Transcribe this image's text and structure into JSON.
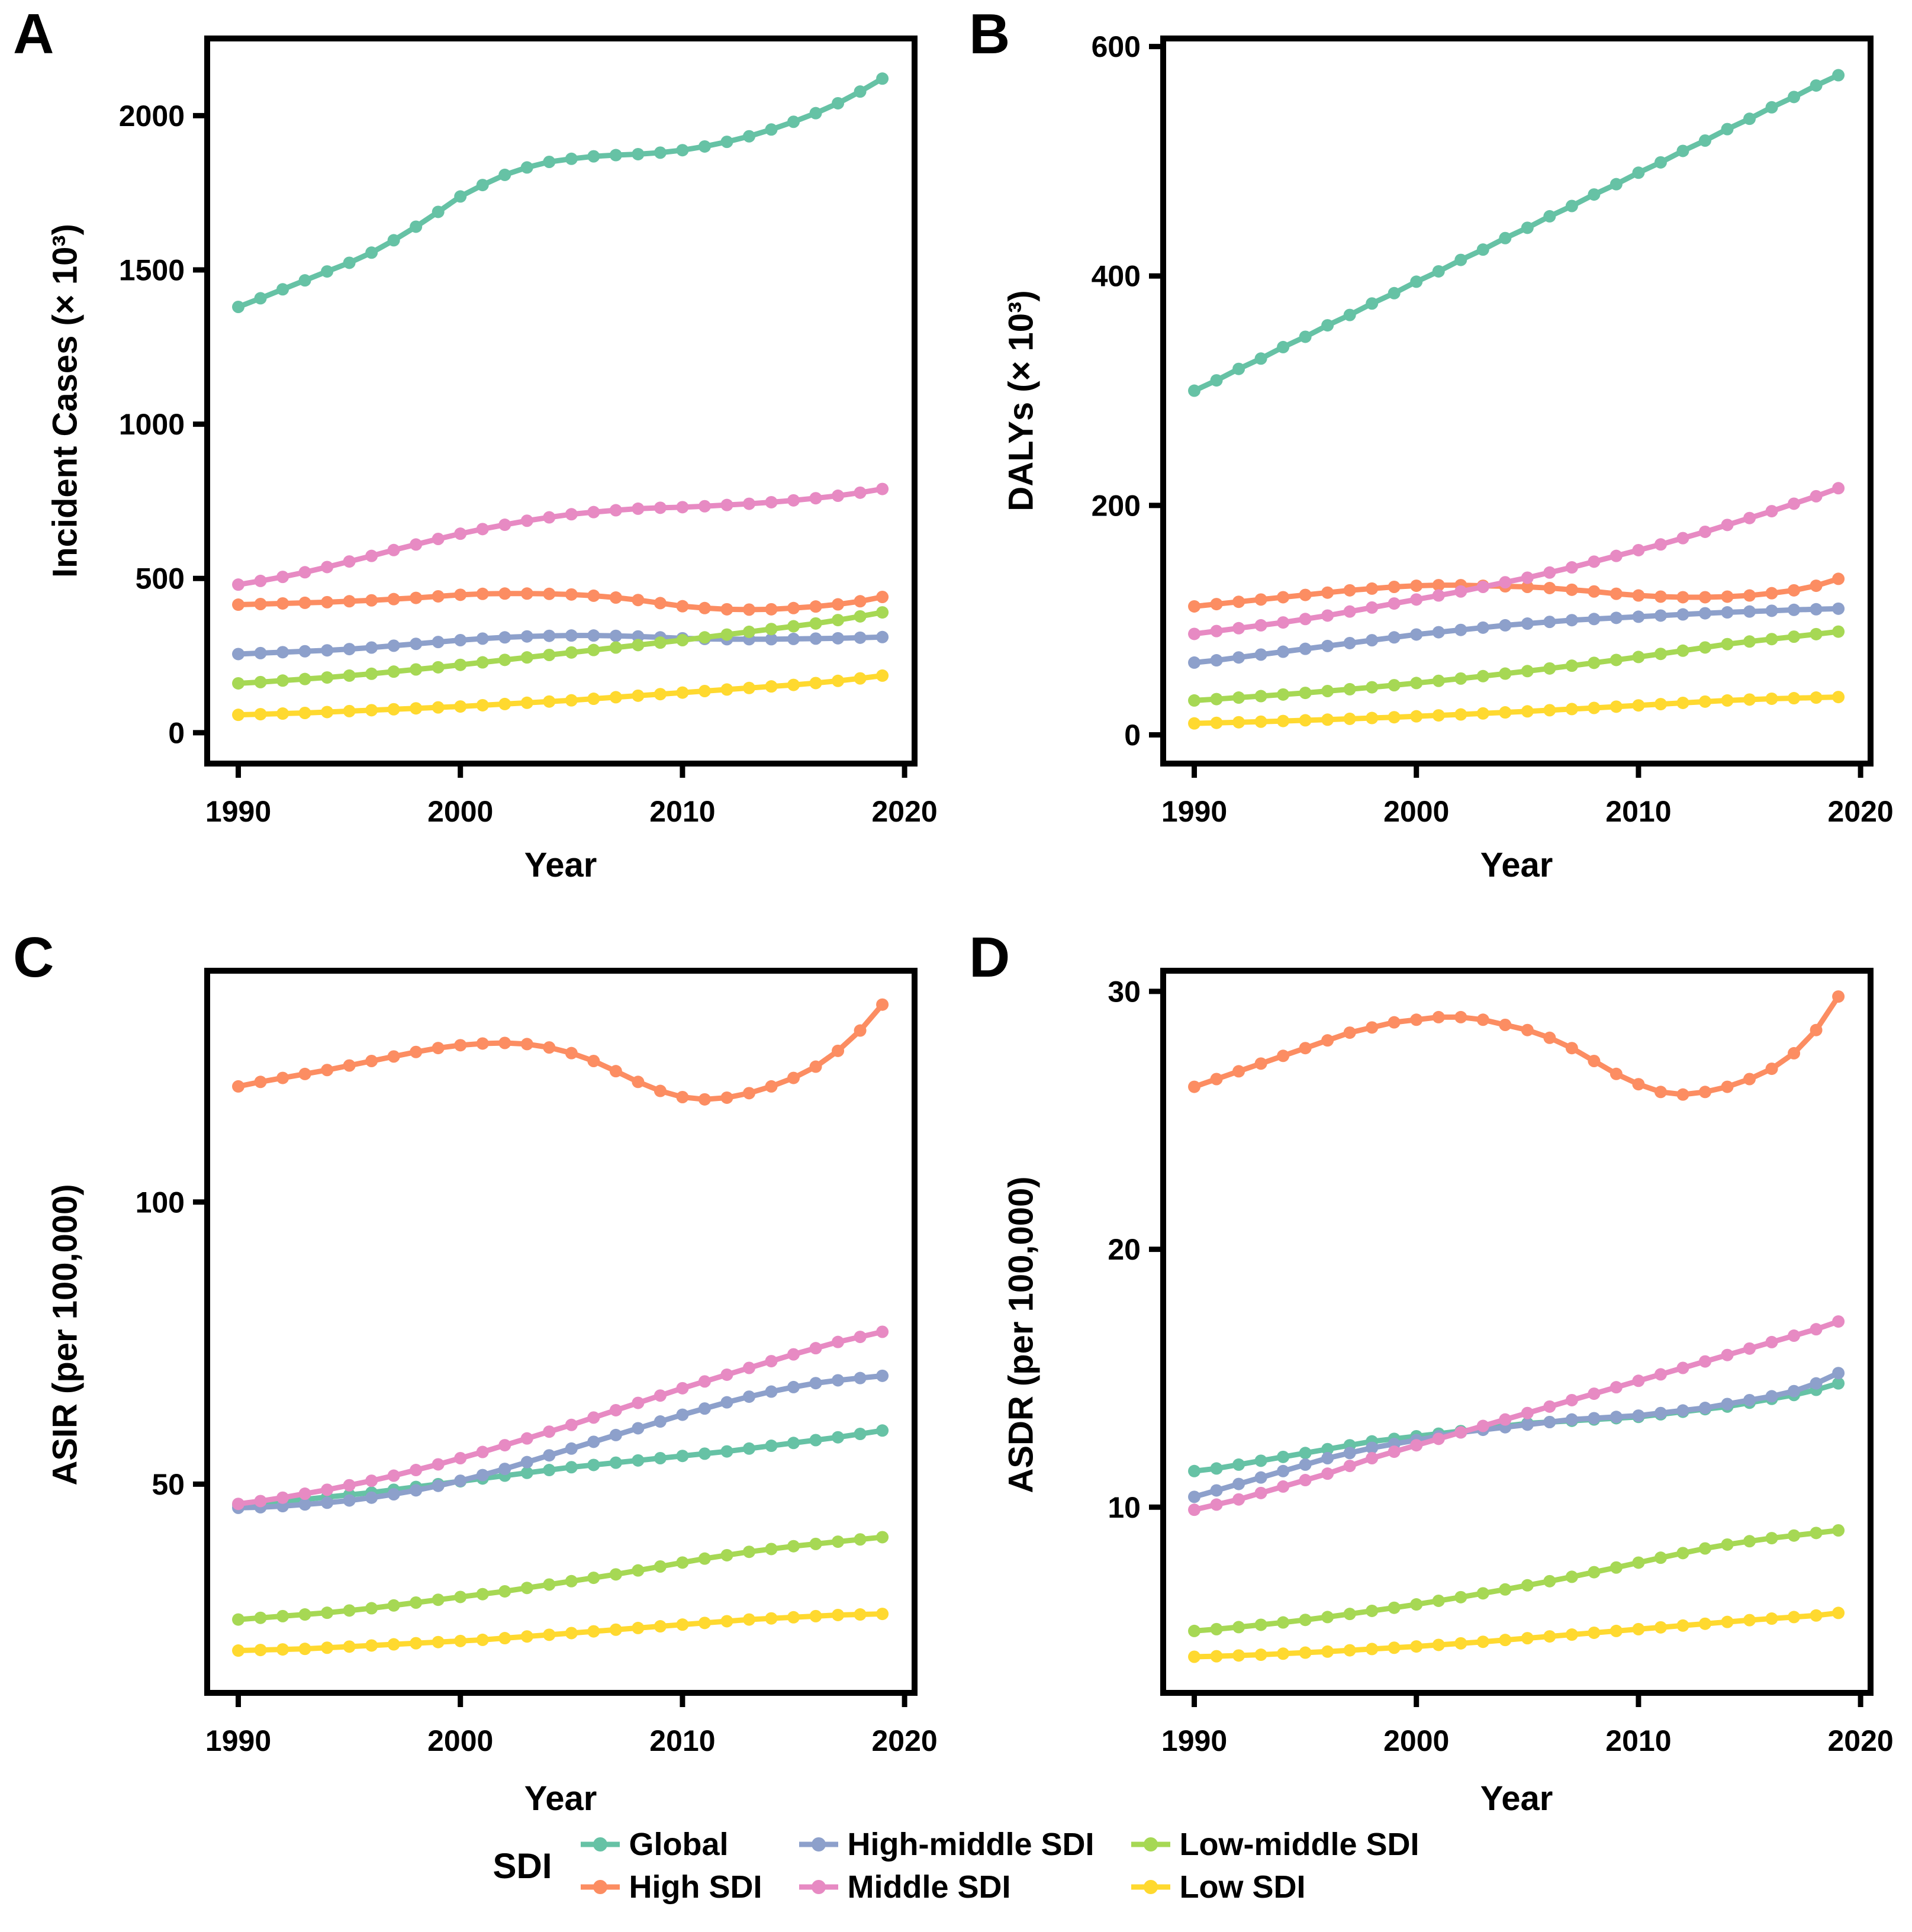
{
  "legend": {
    "title": "SDI",
    "items": [
      {
        "label": "Global",
        "color": "#66C2A5"
      },
      {
        "label": "High SDI",
        "color": "#FC8D62"
      },
      {
        "label": "High-middle SDI",
        "color": "#8DA0CB"
      },
      {
        "label": "Middle SDI",
        "color": "#E78AC3"
      },
      {
        "label": "Low-middle SDI",
        "color": "#A6D854"
      },
      {
        "label": "Low SDI",
        "color": "#FFD92F"
      }
    ]
  },
  "chart_data": [
    {
      "type": "line",
      "panel": "A",
      "xlabel": "Year",
      "ylabel": "Incident Cases (× 10³)",
      "x_start": 1990,
      "x_end": 2019,
      "xlim": [
        1988.6,
        2020.45
      ],
      "ylim": [
        -100,
        2250
      ],
      "xticks": [
        1990,
        2000,
        2010,
        2020
      ],
      "yticks": [
        0,
        500,
        1000,
        1500,
        2000
      ],
      "grid": false,
      "series": [
        {
          "name": "Global",
          "color": "#66C2A5",
          "values": [
            1380,
            1408,
            1437,
            1466,
            1495,
            1523,
            1556,
            1596,
            1640,
            1688,
            1738,
            1775,
            1808,
            1832,
            1850,
            1860,
            1868,
            1872,
            1875,
            1880,
            1888,
            1900,
            1915,
            1933,
            1955,
            1980,
            2008,
            2040,
            2078,
            2120
          ]
        },
        {
          "name": "High SDI",
          "color": "#FC8D62",
          "values": [
            415,
            417,
            419,
            421,
            423,
            426,
            429,
            433,
            437,
            442,
            447,
            450,
            451,
            451,
            450,
            448,
            444,
            438,
            430,
            420,
            410,
            404,
            400,
            399,
            400,
            404,
            409,
            416,
            426,
            440
          ]
        },
        {
          "name": "High-middle SDI",
          "color": "#8DA0CB",
          "values": [
            255,
            258,
            261,
            264,
            267,
            271,
            276,
            282,
            288,
            294,
            300,
            305,
            309,
            312,
            314,
            315,
            315,
            314,
            312,
            309,
            306,
            304,
            303,
            303,
            303,
            304,
            305,
            306,
            308,
            310
          ]
        },
        {
          "name": "Middle SDI",
          "color": "#E78AC3",
          "values": [
            480,
            492,
            505,
            520,
            537,
            555,
            573,
            592,
            610,
            628,
            645,
            660,
            674,
            687,
            698,
            708,
            715,
            721,
            726,
            729,
            731,
            734,
            738,
            742,
            747,
            753,
            760,
            768,
            778,
            790
          ]
        },
        {
          "name": "Low-middle SDI",
          "color": "#A6D854",
          "values": [
            160,
            164,
            169,
            174,
            179,
            185,
            191,
            198,
            205,
            212,
            220,
            228,
            236,
            244,
            252,
            260,
            268,
            276,
            284,
            292,
            300,
            309,
            318,
            327,
            336,
            345,
            354,
            365,
            377,
            390
          ]
        },
        {
          "name": "Low SDI",
          "color": "#FFD92F",
          "values": [
            58,
            60,
            62,
            64,
            67,
            70,
            73,
            76,
            79,
            82,
            85,
            89,
            93,
            97,
            101,
            105,
            110,
            115,
            120,
            125,
            130,
            135,
            140,
            145,
            150,
            155,
            161,
            168,
            176,
            185
          ]
        }
      ]
    },
    {
      "type": "line",
      "panel": "B",
      "xlabel": "Year",
      "ylabel": "DALYs (× 10³)",
      "x_start": 1990,
      "x_end": 2019,
      "xlim": [
        1988.6,
        2020.45
      ],
      "ylim": [
        -25,
        607
      ],
      "xticks": [
        1990,
        2000,
        2010,
        2020
      ],
      "yticks": [
        0,
        200,
        400,
        600
      ],
      "grid": false,
      "series": [
        {
          "name": "Global",
          "color": "#66C2A5",
          "values": [
            300,
            309,
            319,
            328,
            338,
            347,
            357,
            366,
            376,
            385,
            395,
            404,
            414,
            423,
            433,
            442,
            452,
            461,
            471,
            480,
            490,
            499,
            509,
            518,
            528,
            537,
            547,
            556,
            566,
            575
          ]
        },
        {
          "name": "High SDI",
          "color": "#FC8D62",
          "values": [
            112,
            114,
            116,
            118,
            120,
            122,
            124,
            126,
            127.5,
            129,
            130,
            130.5,
            130.5,
            130,
            129.5,
            129,
            128,
            126.5,
            125,
            123,
            121.5,
            120.5,
            120,
            120,
            120.5,
            121.5,
            123.5,
            126,
            130,
            136
          ]
        },
        {
          "name": "High-middle SDI",
          "color": "#8DA0CB",
          "values": [
            63,
            65,
            67.5,
            70,
            72.5,
            75,
            77.5,
            80,
            82.5,
            85,
            87.5,
            89.5,
            91.5,
            93.5,
            95.5,
            97,
            98.5,
            100,
            101,
            102,
            103,
            104,
            105,
            106,
            106.8,
            107.5,
            108.2,
            109,
            109.5,
            110
          ]
        },
        {
          "name": "Middle SDI",
          "color": "#E78AC3",
          "values": [
            88,
            90.5,
            93,
            95.5,
            98,
            101,
            104,
            107.5,
            111,
            114.5,
            118,
            121.5,
            125,
            129,
            133,
            137,
            141.5,
            146,
            151,
            156,
            161,
            166,
            171.5,
            177,
            183,
            189,
            195,
            201.5,
            208,
            215
          ]
        },
        {
          "name": "Low-middle SDI",
          "color": "#A6D854",
          "values": [
            30,
            31.2,
            32.5,
            33.8,
            35.2,
            36.6,
            38.2,
            39.8,
            41.5,
            43.3,
            45.2,
            47.1,
            49.1,
            51.2,
            53.4,
            55.6,
            57.9,
            60.3,
            62.8,
            65.3,
            67.9,
            70.6,
            73.4,
            76.2,
            79.1,
            81.4,
            83.5,
            85.6,
            87.8,
            90
          ]
        },
        {
          "name": "Low SDI",
          "color": "#FFD92F",
          "values": [
            10,
            10.5,
            11,
            11.5,
            12.1,
            12.7,
            13.3,
            14,
            14.7,
            15.4,
            16.2,
            17,
            17.8,
            18.7,
            19.6,
            20.5,
            21.5,
            22.5,
            23.5,
            24.6,
            25.7,
            26.8,
            27.9,
            29,
            30,
            30.8,
            31.5,
            32,
            32.5,
            33
          ]
        }
      ]
    },
    {
      "type": "line",
      "panel": "C",
      "xlabel": "Year",
      "ylabel": "ASIR (per 100,000)",
      "x_start": 1990,
      "x_end": 2019,
      "xlim": [
        1988.6,
        2020.45
      ],
      "ylim": [
        13,
        141
      ],
      "xticks": [
        1990,
        2000,
        2010,
        2020
      ],
      "yticks": [
        50,
        100
      ],
      "grid": false,
      "series": [
        {
          "name": "Global",
          "color": "#66C2A5",
          "values": [
            46.3,
            46.6,
            46.9,
            47.3,
            47.7,
            48.1,
            48.5,
            49,
            49.5,
            50,
            50.5,
            51,
            51.5,
            52,
            52.5,
            53,
            53.4,
            53.8,
            54.2,
            54.6,
            55,
            55.4,
            55.8,
            56.3,
            56.8,
            57.3,
            57.8,
            58.3,
            58.9,
            59.5
          ]
        },
        {
          "name": "High SDI",
          "color": "#FC8D62",
          "values": [
            120.5,
            121.3,
            122,
            122.7,
            123.4,
            124.2,
            125,
            125.8,
            126.6,
            127.3,
            127.8,
            128.1,
            128.2,
            128,
            127.4,
            126.4,
            125,
            123.2,
            121.3,
            119.7,
            118.6,
            118.2,
            118.5,
            119.3,
            120.5,
            122,
            124,
            126.8,
            130.4,
            135
          ]
        },
        {
          "name": "High-middle SDI",
          "color": "#8DA0CB",
          "values": [
            45.8,
            45.9,
            46.1,
            46.4,
            46.7,
            47.1,
            47.6,
            48.2,
            48.9,
            49.7,
            50.6,
            51.6,
            52.7,
            53.9,
            55.1,
            56.3,
            57.5,
            58.7,
            59.9,
            61.1,
            62.3,
            63.4,
            64.5,
            65.5,
            66.4,
            67.2,
            67.9,
            68.4,
            68.8,
            69.2
          ]
        },
        {
          "name": "Middle SDI",
          "color": "#E78AC3",
          "values": [
            46.5,
            47,
            47.6,
            48.3,
            49,
            49.8,
            50.6,
            51.5,
            52.5,
            53.5,
            54.6,
            55.7,
            56.9,
            58.1,
            59.3,
            60.5,
            61.8,
            63.1,
            64.4,
            65.7,
            67,
            68.2,
            69.4,
            70.6,
            71.8,
            73,
            74.1,
            75.2,
            76.1,
            77
          ]
        },
        {
          "name": "Low-middle SDI",
          "color": "#A6D854",
          "values": [
            26,
            26.3,
            26.6,
            26.9,
            27.2,
            27.6,
            28,
            28.5,
            29,
            29.5,
            30,
            30.5,
            31,
            31.6,
            32.2,
            32.8,
            33.4,
            34,
            34.7,
            35.4,
            36.1,
            36.8,
            37.4,
            38,
            38.5,
            39,
            39.4,
            39.8,
            40.2,
            40.6
          ]
        },
        {
          "name": "Low SDI",
          "color": "#FFD92F",
          "values": [
            20.5,
            20.6,
            20.7,
            20.8,
            21,
            21.2,
            21.4,
            21.6,
            21.8,
            22,
            22.2,
            22.4,
            22.7,
            23,
            23.3,
            23.6,
            23.9,
            24.2,
            24.5,
            24.8,
            25.1,
            25.4,
            25.7,
            26,
            26.2,
            26.4,
            26.6,
            26.8,
            26.9,
            27
          ]
        }
      ]
    },
    {
      "type": "line",
      "panel": "D",
      "xlabel": "Year",
      "ylabel": "ASDR (per 100,000)",
      "x_start": 1990,
      "x_end": 2019,
      "xlim": [
        1988.6,
        2020.45
      ],
      "ylim": [
        2.8,
        30.8
      ],
      "xticks": [
        1990,
        2000,
        2010,
        2020
      ],
      "yticks": [
        10,
        20,
        30
      ],
      "grid": false,
      "series": [
        {
          "name": "Global",
          "color": "#66C2A5",
          "values": [
            11.4,
            11.5,
            11.65,
            11.8,
            11.95,
            12.1,
            12.25,
            12.4,
            12.55,
            12.65,
            12.75,
            12.85,
            12.95,
            13.05,
            13.15,
            13.25,
            13.3,
            13.35,
            13.4,
            13.45,
            13.5,
            13.6,
            13.7,
            13.8,
            13.9,
            14.05,
            14.2,
            14.35,
            14.55,
            14.8
          ]
        },
        {
          "name": "High SDI",
          "color": "#FC8D62",
          "values": [
            26.3,
            26.6,
            26.9,
            27.2,
            27.5,
            27.8,
            28.1,
            28.4,
            28.6,
            28.8,
            28.9,
            29,
            29,
            28.9,
            28.7,
            28.5,
            28.2,
            27.8,
            27.3,
            26.8,
            26.4,
            26.1,
            26,
            26.1,
            26.3,
            26.6,
            27,
            27.6,
            28.5,
            29.8
          ]
        },
        {
          "name": "High-middle SDI",
          "color": "#8DA0CB",
          "values": [
            10.4,
            10.65,
            10.9,
            11.15,
            11.4,
            11.65,
            11.9,
            12.1,
            12.3,
            12.45,
            12.6,
            12.75,
            12.9,
            13,
            13.1,
            13.2,
            13.3,
            13.4,
            13.45,
            13.5,
            13.55,
            13.65,
            13.75,
            13.85,
            14,
            14.15,
            14.3,
            14.5,
            14.8,
            15.2
          ]
        },
        {
          "name": "Middle SDI",
          "color": "#E78AC3",
          "values": [
            9.9,
            10.1,
            10.3,
            10.55,
            10.8,
            11.05,
            11.3,
            11.6,
            11.9,
            12.15,
            12.4,
            12.65,
            12.9,
            13.15,
            13.4,
            13.65,
            13.9,
            14.15,
            14.4,
            14.65,
            14.9,
            15.15,
            15.4,
            15.65,
            15.9,
            16.15,
            16.4,
            16.65,
            16.9,
            17.2
          ]
        },
        {
          "name": "Low-middle SDI",
          "color": "#A6D854",
          "values": [
            5.2,
            5.27,
            5.35,
            5.44,
            5.53,
            5.63,
            5.74,
            5.86,
            5.98,
            6.1,
            6.23,
            6.37,
            6.51,
            6.66,
            6.81,
            6.97,
            7.13,
            7.3,
            7.48,
            7.66,
            7.85,
            8.04,
            8.22,
            8.4,
            8.55,
            8.68,
            8.8,
            8.9,
            9,
            9.1
          ]
        },
        {
          "name": "Low SDI",
          "color": "#FFD92F",
          "values": [
            4.2,
            4.22,
            4.25,
            4.28,
            4.32,
            4.36,
            4.4,
            4.45,
            4.5,
            4.55,
            4.6,
            4.66,
            4.72,
            4.78,
            4.85,
            4.92,
            4.99,
            5.06,
            5.13,
            5.2,
            5.27,
            5.34,
            5.41,
            5.48,
            5.55,
            5.62,
            5.68,
            5.74,
            5.8,
            5.9
          ]
        }
      ]
    }
  ]
}
